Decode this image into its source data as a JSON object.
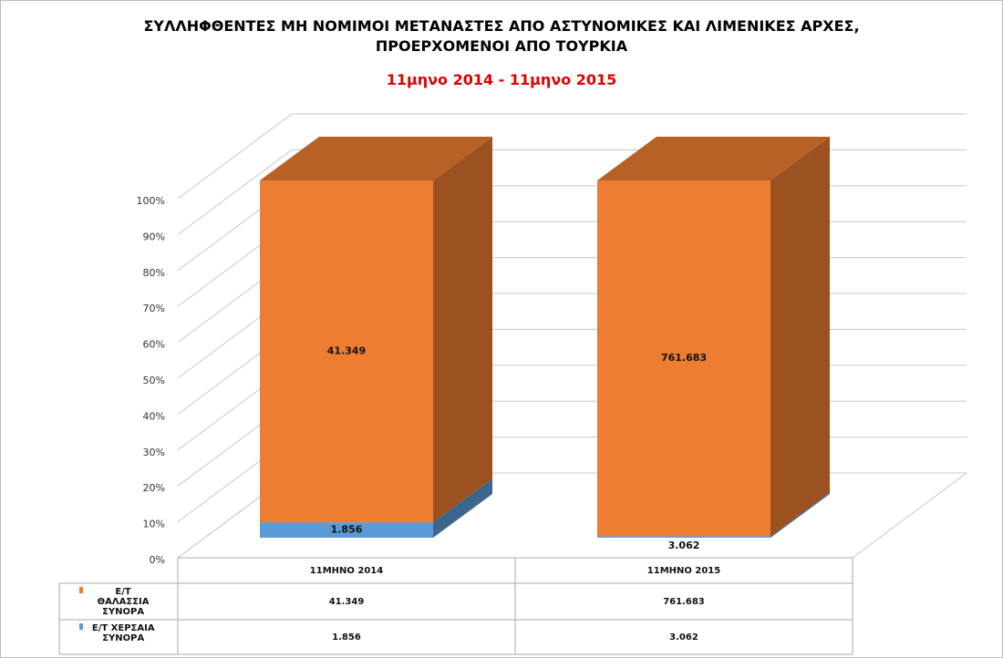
{
  "chart_data": {
    "type": "bar",
    "stacking": "percent",
    "title": "ΣΥΛΛΗΦΘΕΝΤΕΣ ΜΗ ΝΟΜΙΜΟΙ ΜΕΤΑΝΑΣΤΕΣ ΑΠΟ ΑΣΤΥΝΟΜΙΚΕΣ ΚΑΙ ΛΙΜΕΝΙΚΕΣ ΑΡΧΕΣ, ΠΡΟΕΡΧΟΜΕΝΟΙ ΑΠΟ ΤΟΥΡΚΙΑ",
    "subtitle": "11μηνο 2014 - 11μηνο 2015",
    "categories": [
      "11ΜΗΝΟ 2014",
      "11ΜΗΝΟ 2015"
    ],
    "series": [
      {
        "name": "Ε/Τ ΧΕΡΣΑΙΑ ΣΥΝΟΡΑ",
        "color": "#5b9bd5",
        "values": [
          1856,
          3062
        ],
        "value_labels": [
          "1.856",
          "3.062"
        ]
      },
      {
        "name": "Ε/Τ ΘΑΛΑΣΣΙΑ ΣΥΝΟΡΑ",
        "color": "#ed7d31",
        "values": [
          41349,
          761683
        ],
        "value_labels": [
          "41.349",
          "761.683"
        ]
      }
    ],
    "ylim": [
      0,
      100
    ],
    "yticks": [
      {
        "value": 0,
        "label": "0%"
      },
      {
        "value": 10,
        "label": "10%"
      },
      {
        "value": 20,
        "label": "20%"
      },
      {
        "value": 30,
        "label": "30%"
      },
      {
        "value": 40,
        "label": "40%"
      },
      {
        "value": 50,
        "label": "50%"
      },
      {
        "value": 60,
        "label": "60%"
      },
      {
        "value": 70,
        "label": "70%"
      },
      {
        "value": 80,
        "label": "80%"
      },
      {
        "value": 90,
        "label": "90%"
      },
      {
        "value": 100,
        "label": "100%"
      }
    ],
    "grid": true,
    "data_table": true
  }
}
